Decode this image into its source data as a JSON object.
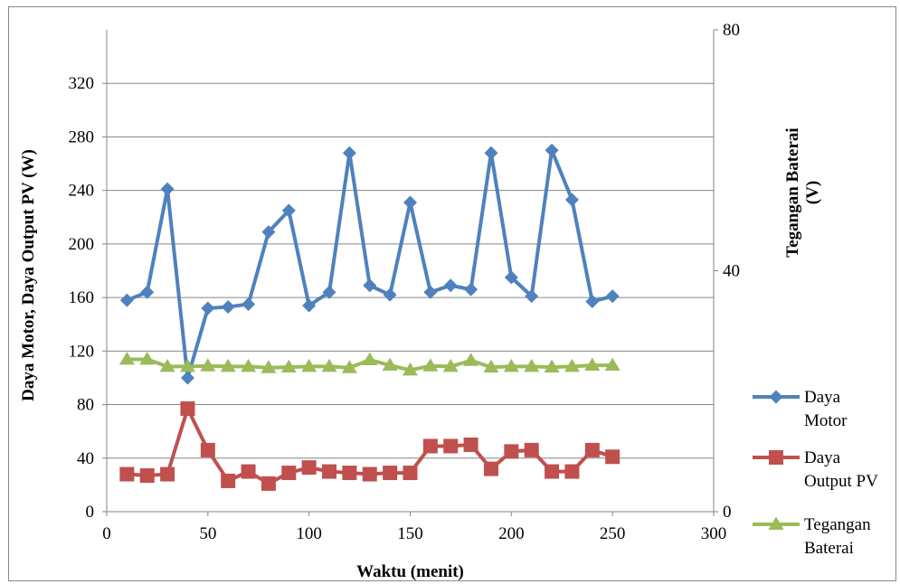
{
  "chart_data": {
    "type": "line",
    "title": "",
    "xlabel": "Waktu (menit)",
    "ylabel": "Daya Motor, Daya Output PV (W)",
    "y2label_lines": [
      "Tegangan Baterai",
      "(V)"
    ],
    "xlim": [
      0,
      300
    ],
    "ylim": [
      0,
      360
    ],
    "y2lim": [
      0,
      80
    ],
    "xticks": [
      0,
      50,
      100,
      150,
      200,
      250,
      300
    ],
    "yticks": [
      0,
      40,
      80,
      120,
      160,
      200,
      240,
      280,
      320
    ],
    "y2ticks": [
      0,
      40,
      80
    ],
    "grid": "horizontal",
    "legend_position": "right",
    "x": [
      10,
      20,
      30,
      40,
      50,
      60,
      70,
      80,
      90,
      100,
      110,
      120,
      130,
      140,
      150,
      160,
      170,
      180,
      190,
      200,
      210,
      220,
      230,
      240,
      250
    ],
    "series": [
      {
        "name_lines": [
          "Daya",
          "Motor"
        ],
        "axis": "left",
        "color": "#4f81bd",
        "marker": "diamond",
        "values": [
          158,
          164,
          241,
          100,
          152,
          153,
          155,
          209,
          225,
          154,
          164,
          268,
          169,
          162,
          231,
          164,
          169,
          166,
          268,
          175,
          161,
          270,
          233,
          157,
          161
        ]
      },
      {
        "name_lines": [
          "Daya",
          "Output PV"
        ],
        "axis": "left",
        "color": "#c0504d",
        "marker": "square",
        "values": [
          28,
          27,
          28,
          77,
          46,
          23,
          30,
          21,
          29,
          33,
          30,
          29,
          28,
          29,
          29,
          49,
          49,
          50,
          32,
          45,
          46,
          30,
          30,
          46,
          41
        ]
      },
      {
        "name_lines": [
          "Tegangan",
          "Baterai"
        ],
        "axis": "right",
        "color": "#9bbb59",
        "marker": "triangle",
        "values": [
          25.3,
          25.3,
          24.1,
          24.1,
          24.2,
          24.1,
          24.1,
          23.9,
          24.0,
          24.1,
          24.1,
          23.9,
          25.2,
          24.3,
          23.5,
          24.2,
          24.1,
          25.1,
          24.0,
          24.1,
          24.1,
          24.0,
          24.1,
          24.3,
          24.3
        ]
      }
    ]
  }
}
